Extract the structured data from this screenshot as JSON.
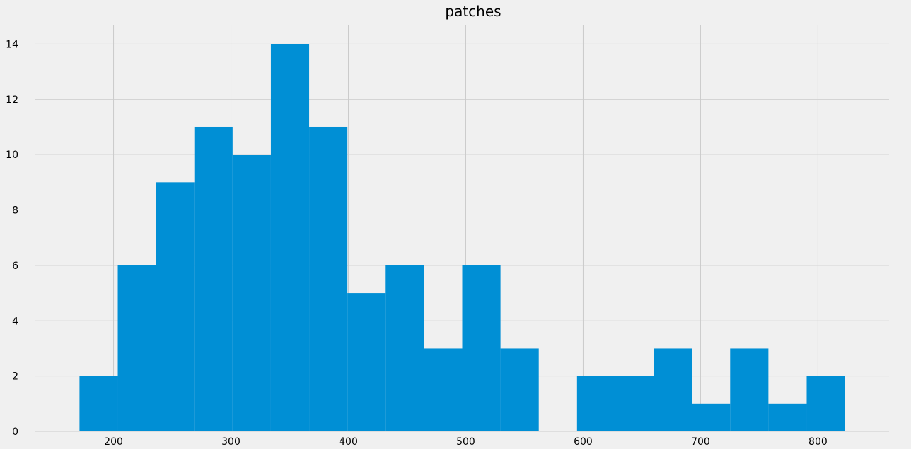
{
  "chart_data": {
    "type": "bar",
    "title": "patches",
    "xlabel": "",
    "ylabel": "",
    "bins": [
      {
        "start": 171.0,
        "end": 203.6,
        "count": 2
      },
      {
        "start": 203.6,
        "end": 236.2,
        "count": 6
      },
      {
        "start": 236.2,
        "end": 268.8,
        "count": 9
      },
      {
        "start": 268.8,
        "end": 301.4,
        "count": 11
      },
      {
        "start": 301.4,
        "end": 334.0,
        "count": 10
      },
      {
        "start": 334.0,
        "end": 366.6,
        "count": 14
      },
      {
        "start": 366.6,
        "end": 399.2,
        "count": 11
      },
      {
        "start": 399.2,
        "end": 431.8,
        "count": 5
      },
      {
        "start": 431.8,
        "end": 464.4,
        "count": 6
      },
      {
        "start": 464.4,
        "end": 497.0,
        "count": 3
      },
      {
        "start": 497.0,
        "end": 529.6,
        "count": 6
      },
      {
        "start": 529.6,
        "end": 562.2,
        "count": 3
      },
      {
        "start": 562.2,
        "end": 594.8,
        "count": 0
      },
      {
        "start": 594.8,
        "end": 627.4,
        "count": 2
      },
      {
        "start": 627.4,
        "end": 660.0,
        "count": 2
      },
      {
        "start": 660.0,
        "end": 692.6,
        "count": 3
      },
      {
        "start": 692.6,
        "end": 725.2,
        "count": 1
      },
      {
        "start": 725.2,
        "end": 757.8,
        "count": 3
      },
      {
        "start": 757.8,
        "end": 790.4,
        "count": 1
      },
      {
        "start": 790.4,
        "end": 823.0,
        "count": 2
      }
    ],
    "xlim": [
      133.4,
      860.6
    ],
    "ylim": [
      0,
      14.7
    ],
    "xticks": [
      200,
      300,
      400,
      500,
      600,
      700,
      800
    ],
    "yticks": [
      0,
      2,
      4,
      6,
      8,
      10,
      12,
      14
    ],
    "grid": true,
    "legend": "none",
    "bar_color": "#008fd5",
    "grid_color": "#cbcbcb",
    "background_color": "#f0f0f0"
  }
}
